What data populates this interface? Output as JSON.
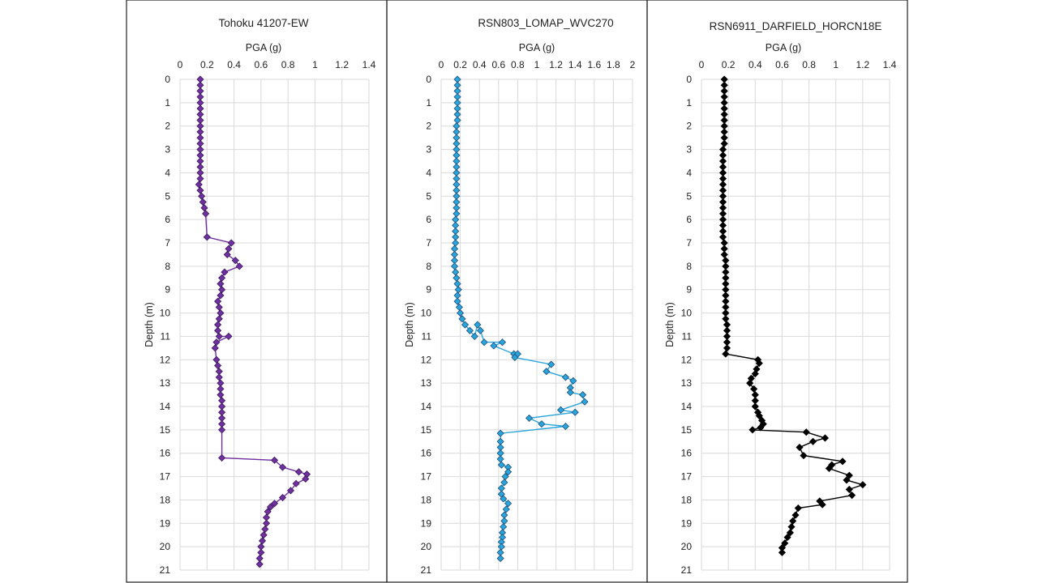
{
  "chart_data": [
    {
      "type": "scatter",
      "title": "Tohoku 41207-EW",
      "xlabel": "PGA (g)",
      "ylabel": "Depth (m)",
      "x_axis_position": "top",
      "y_axis_reversed": true,
      "xlim": [
        0,
        1.4
      ],
      "xticks": [
        "0",
        "0.2",
        "0.4",
        "0.6",
        "0.8",
        "1",
        "1.2",
        "1.4"
      ],
      "ylim": [
        0,
        21
      ],
      "yticks": [
        "0",
        "1",
        "2",
        "3",
        "4",
        "5",
        "6",
        "7",
        "8",
        "9",
        "10",
        "11",
        "12",
        "13",
        "14",
        "15",
        "16",
        "17",
        "18",
        "19",
        "20",
        "21"
      ],
      "grid": true,
      "line_color": "#7030a0",
      "marker_fill": "#7030a0",
      "marker_stroke": "#3b1a5a",
      "marker": "diamond",
      "series": [
        {
          "x": [
            0.15,
            0.15,
            0.15,
            0.15,
            0.15,
            0.15,
            0.15,
            0.15,
            0.15,
            0.15,
            0.15,
            0.15,
            0.15,
            0.15,
            0.15,
            0.15,
            0.15,
            0.15,
            0.14,
            0.15,
            0.16,
            0.17,
            0.18,
            0.19,
            0.2,
            0.38,
            0.36,
            0.35,
            0.41,
            0.44,
            0.33,
            0.31,
            0.3,
            0.31,
            0.3,
            0.28,
            0.29,
            0.3,
            0.29,
            0.28,
            0.28,
            0.29,
            0.36,
            0.27,
            0.26,
            0.27,
            0.28,
            0.29,
            0.29,
            0.3,
            0.3,
            0.3,
            0.31,
            0.31,
            0.31,
            0.31,
            0.31,
            0.31,
            0.31,
            0.7,
            0.76,
            0.88,
            0.94,
            0.93,
            0.86,
            0.82,
            0.76,
            0.7,
            0.67,
            0.65,
            0.64,
            0.64,
            0.63,
            0.62,
            0.61,
            0.6,
            0.6,
            0.59,
            0.59
          ],
          "y": [
            0,
            0.25,
            0.5,
            0.75,
            1,
            1.25,
            1.5,
            1.75,
            2,
            2.25,
            2.5,
            2.75,
            3,
            3.25,
            3.5,
            3.75,
            4,
            4.25,
            4.5,
            4.75,
            5,
            5.25,
            5.5,
            5.75,
            6.75,
            7,
            7.25,
            7.5,
            7.75,
            8,
            8.25,
            8.5,
            8.75,
            9,
            9.25,
            9.5,
            9.75,
            10,
            10.25,
            10.5,
            10.75,
            11,
            11,
            11.25,
            11.5,
            12,
            12.25,
            12.5,
            12.75,
            13,
            13.25,
            13.5,
            13.75,
            14,
            14.25,
            14.5,
            14.75,
            15,
            16.2,
            16.3,
            16.6,
            16.8,
            16.9,
            17.1,
            17.3,
            17.6,
            17.9,
            18.15,
            18.3,
            18.5,
            18.75,
            19,
            19.25,
            19.5,
            19.75,
            20,
            20.25,
            20.5,
            20.75
          ]
        }
      ]
    },
    {
      "type": "scatter",
      "title": "RSN803_LOMAP_WVC270",
      "xlabel": "PGA (g)",
      "ylabel": "Depth (m)",
      "x_axis_position": "top",
      "y_axis_reversed": true,
      "xlim": [
        0,
        2
      ],
      "xticks": [
        "0",
        "0.2",
        "0.4",
        "0.6",
        "0.8",
        "1",
        "1.2",
        "1.4",
        "1.6",
        "1.8",
        "2"
      ],
      "ylim": [
        0,
        21
      ],
      "yticks": [
        "0",
        "1",
        "2",
        "3",
        "4",
        "5",
        "6",
        "7",
        "8",
        "9",
        "10",
        "11",
        "12",
        "13",
        "14",
        "15",
        "16",
        "17",
        "18",
        "19",
        "20",
        "21"
      ],
      "grid": true,
      "line_color": "#2aa5dc",
      "marker_fill": "#2aa5dc",
      "marker_stroke": "#1f4e79",
      "marker": "diamond",
      "series": [
        {
          "x": [
            0.17,
            0.17,
            0.17,
            0.17,
            0.17,
            0.17,
            0.17,
            0.17,
            0.16,
            0.16,
            0.16,
            0.16,
            0.16,
            0.16,
            0.16,
            0.16,
            0.16,
            0.16,
            0.16,
            0.16,
            0.16,
            0.16,
            0.16,
            0.16,
            0.15,
            0.15,
            0.15,
            0.15,
            0.15,
            0.14,
            0.14,
            0.14,
            0.14,
            0.15,
            0.16,
            0.17,
            0.18,
            0.17,
            0.17,
            0.19,
            0.2,
            0.22,
            0.25,
            0.3,
            0.35,
            0.38,
            0.41,
            0.45,
            0.64,
            0.55,
            0.76,
            0.8,
            0.77,
            1.15,
            1.1,
            1.3,
            1.38,
            1.35,
            1.35,
            1.48,
            1.5,
            1.25,
            1.4,
            0.92,
            1.05,
            1.3,
            0.62,
            0.62,
            0.62,
            0.62,
            0.62,
            0.63,
            0.7,
            0.7,
            0.67,
            0.66,
            0.63,
            0.63,
            0.65,
            0.7,
            0.68,
            0.66,
            0.66,
            0.65,
            0.64,
            0.64,
            0.63,
            0.63,
            0.62,
            0.62
          ],
          "y": [
            0,
            0.25,
            0.5,
            0.75,
            1,
            1.25,
            1.5,
            1.75,
            2,
            2.25,
            2.5,
            2.75,
            3,
            3.25,
            3.5,
            3.75,
            4,
            4.25,
            4.5,
            4.75,
            5,
            5.25,
            5.5,
            5.75,
            6,
            6.25,
            6.5,
            6.75,
            7,
            7.25,
            7.5,
            7.75,
            8,
            8.25,
            8.5,
            8.75,
            9,
            9.25,
            9.5,
            9.75,
            10,
            10.25,
            10.5,
            10.75,
            11,
            10.5,
            10.75,
            11.25,
            11.25,
            11.4,
            11.75,
            11.75,
            11.9,
            12.2,
            12.5,
            12.75,
            12.9,
            13.2,
            13.4,
            13.5,
            13.8,
            14.15,
            14.25,
            14.5,
            14.75,
            14.85,
            15.15,
            15.5,
            15.75,
            16,
            16.25,
            16.5,
            16.6,
            16.8,
            17,
            17.25,
            17.5,
            17.75,
            17.95,
            18.15,
            18.4,
            18.65,
            18.9,
            19.15,
            19.4,
            19.6,
            19.8,
            20,
            20.25,
            20.5
          ]
        }
      ]
    },
    {
      "type": "scatter",
      "title": "RSN6911_DARFIELD_HORCN18E",
      "xlabel": "PGA (g)",
      "ylabel": "Depth (m)",
      "x_axis_position": "top",
      "y_axis_reversed": true,
      "xlim": [
        0,
        1.4
      ],
      "xticks": [
        "0",
        "0.2",
        "0.4",
        "0.6",
        "0.8",
        "1",
        "1.2",
        "1.4"
      ],
      "ylim": [
        0,
        21
      ],
      "yticks": [
        "0",
        "1",
        "2",
        "3",
        "4",
        "5",
        "6",
        "7",
        "8",
        "9",
        "10",
        "11",
        "12",
        "13",
        "14",
        "15",
        "16",
        "17",
        "18",
        "19",
        "20",
        "21"
      ],
      "grid": true,
      "line_color": "#000000",
      "marker_fill": "#000000",
      "marker_stroke": "#000000",
      "marker": "diamond",
      "series": [
        {
          "x": [
            0.17,
            0.17,
            0.17,
            0.17,
            0.17,
            0.17,
            0.17,
            0.17,
            0.17,
            0.17,
            0.17,
            0.17,
            0.16,
            0.16,
            0.16,
            0.16,
            0.16,
            0.16,
            0.16,
            0.16,
            0.16,
            0.16,
            0.16,
            0.16,
            0.16,
            0.16,
            0.16,
            0.16,
            0.17,
            0.17,
            0.17,
            0.18,
            0.18,
            0.18,
            0.18,
            0.18,
            0.18,
            0.18,
            0.18,
            0.18,
            0.18,
            0.18,
            0.19,
            0.19,
            0.19,
            0.19,
            0.19,
            0.18,
            0.42,
            0.43,
            0.41,
            0.4,
            0.37,
            0.36,
            0.39,
            0.4,
            0.4,
            0.4,
            0.42,
            0.43,
            0.45,
            0.46,
            0.44,
            0.38,
            0.78,
            0.92,
            0.83,
            0.73,
            0.76,
            1.05,
            0.97,
            0.95,
            1.1,
            1.08,
            1.2,
            1.1,
            1.12,
            0.88,
            0.9,
            0.72,
            0.7,
            0.68,
            0.67,
            0.66,
            0.64,
            0.62,
            0.6,
            0.6
          ],
          "y": [
            0,
            0.25,
            0.5,
            0.75,
            1,
            1.25,
            1.5,
            1.75,
            2,
            2.25,
            2.5,
            2.75,
            3,
            3.25,
            3.5,
            3.75,
            4,
            4.25,
            4.5,
            4.75,
            5,
            5.25,
            5.5,
            5.75,
            6,
            6.25,
            6.5,
            6.75,
            7,
            7.25,
            7.5,
            7.75,
            8,
            8.25,
            8.5,
            8.75,
            9,
            9.25,
            9.5,
            9.75,
            10,
            10.25,
            10.5,
            10.75,
            11,
            11.25,
            11.5,
            11.75,
            12,
            12.15,
            12.4,
            12.6,
            12.8,
            13,
            13.25,
            13.5,
            13.75,
            14,
            14.25,
            14.4,
            14.6,
            14.75,
            14.9,
            15,
            15.1,
            15.35,
            15.5,
            15.75,
            16.1,
            16.35,
            16.5,
            16.65,
            16.95,
            17.15,
            17.35,
            17.55,
            17.8,
            18.05,
            18.2,
            18.35,
            18.65,
            18.9,
            19.15,
            19.4,
            19.6,
            19.85,
            20.05,
            20.25
          ]
        }
      ]
    }
  ]
}
